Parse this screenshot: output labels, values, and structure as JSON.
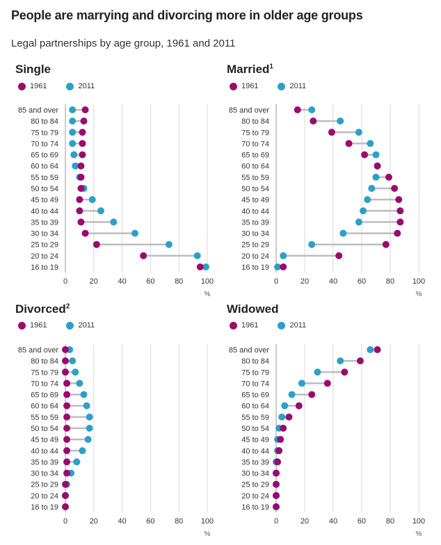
{
  "title": "People are marrying and divorcing more in older age groups",
  "subtitle": "Legal partnerships by age group, 1961 and 2011",
  "colors": {
    "y1961": "#9b0a6e",
    "y2011": "#2ba0c9",
    "connector": "#bdbdbd",
    "grid": "#d9d9d9"
  },
  "legend": {
    "a": "1961",
    "b": "2011"
  },
  "chart_data": [
    {
      "type": "dumbbell",
      "title": "Single",
      "footnote": "",
      "categories": [
        "85 and over",
        "80 to 84",
        "75 to 79",
        "70 to 74",
        "65 to 69",
        "60 to 64",
        "55 to 59",
        "50 to 54",
        "45 to 49",
        "40 to 44",
        "35 to 39",
        "30 to 34",
        "25 to 29",
        "20 to 24",
        "16 to 19"
      ],
      "series": [
        {
          "name": "1961",
          "values": [
            14,
            13,
            12,
            12,
            12,
            11,
            11,
            11,
            10,
            10,
            11,
            14,
            22,
            55,
            95
          ]
        },
        {
          "name": "2011",
          "values": [
            5,
            5,
            5,
            5,
            6,
            7,
            10,
            13,
            19,
            25,
            34,
            49,
            73,
            93,
            99
          ]
        }
      ],
      "xticks": [
        0,
        20,
        40,
        60,
        80,
        100
      ],
      "xlim": [
        0,
        100
      ],
      "xlabel": "%"
    },
    {
      "type": "dumbbell",
      "title": "Married",
      "footnote": "1",
      "categories": [
        "85 and over",
        "80 to 84",
        "75 to 79",
        "70 to 74",
        "65 to 69",
        "60 to 64",
        "55 to 59",
        "50 to 54",
        "45 to 49",
        "40 to 44",
        "35 to 39",
        "30 to 34",
        "25 to 29",
        "20 to 24",
        "16 to 19"
      ],
      "series": [
        {
          "name": "1961",
          "values": [
            15,
            26,
            39,
            51,
            62,
            71,
            79,
            83,
            86,
            87,
            87,
            85,
            77,
            44,
            5
          ]
        },
        {
          "name": "2011",
          "values": [
            25,
            45,
            58,
            66,
            70,
            71,
            70,
            67,
            64,
            61,
            58,
            47,
            25,
            5,
            1
          ]
        }
      ],
      "xticks": [
        0,
        20,
        40,
        60,
        80,
        100
      ],
      "xlim": [
        0,
        100
      ],
      "xlabel": "%"
    },
    {
      "type": "dumbbell",
      "title": "Divorced",
      "footnote": "2",
      "categories": [
        "85 and over",
        "80 to 84",
        "75 to 79",
        "70 to 74",
        "65 to 69",
        "60 to 64",
        "55 to 59",
        "50 to 54",
        "45 to 49",
        "40 to 44",
        "35 to 39",
        "30 to 34",
        "25 to 29",
        "20 to 24",
        "16 to 19"
      ],
      "series": [
        {
          "name": "1961",
          "values": [
            0,
            0,
            0,
            1,
            1,
            1,
            1,
            1,
            1,
            1,
            1,
            1,
            0,
            0,
            0
          ]
        },
        {
          "name": "2011",
          "values": [
            3,
            5,
            7,
            10,
            13,
            15,
            17,
            17,
            16,
            12,
            8,
            4,
            1,
            0,
            0
          ]
        }
      ],
      "xticks": [
        0,
        20,
        40,
        60,
        80,
        100
      ],
      "xlim": [
        0,
        100
      ],
      "xlabel": "%"
    },
    {
      "type": "dumbbell",
      "title": "Widowed",
      "footnote": "",
      "categories": [
        "85 and over",
        "80 to 84",
        "75 to 79",
        "70 to 74",
        "65 to 69",
        "60 to 64",
        "55 to 59",
        "50 to 54",
        "45 to 49",
        "40 to 44",
        "35 to 39",
        "30 to 34",
        "25 to 29",
        "20 to 24",
        "16 to 19"
      ],
      "series": [
        {
          "name": "1961",
          "values": [
            71,
            59,
            48,
            36,
            25,
            16,
            9,
            5,
            3,
            2,
            1,
            0,
            0,
            0,
            0
          ]
        },
        {
          "name": "2011",
          "values": [
            66,
            45,
            29,
            18,
            11,
            6,
            4,
            2,
            1,
            1,
            0,
            0,
            0,
            0,
            0
          ]
        }
      ],
      "xticks": [
        0,
        20,
        40,
        60,
        80,
        100
      ],
      "xlim": [
        0,
        100
      ],
      "xlabel": "%"
    }
  ]
}
